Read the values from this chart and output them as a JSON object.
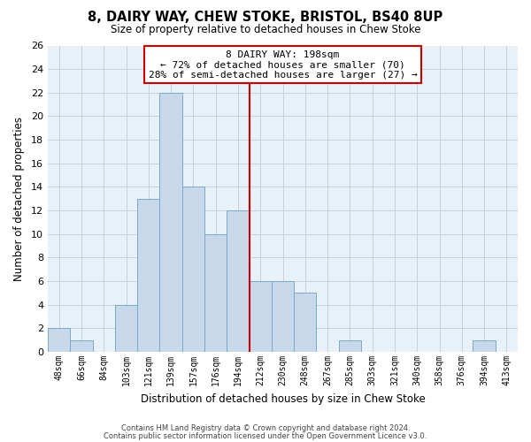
{
  "title": "8, DAIRY WAY, CHEW STOKE, BRISTOL, BS40 8UP",
  "subtitle": "Size of property relative to detached houses in Chew Stoke",
  "xlabel": "Distribution of detached houses by size in Chew Stoke",
  "ylabel": "Number of detached properties",
  "bin_labels": [
    "48sqm",
    "66sqm",
    "84sqm",
    "103sqm",
    "121sqm",
    "139sqm",
    "157sqm",
    "176sqm",
    "194sqm",
    "212sqm",
    "230sqm",
    "248sqm",
    "267sqm",
    "285sqm",
    "303sqm",
    "321sqm",
    "340sqm",
    "358sqm",
    "376sqm",
    "394sqm",
    "413sqm"
  ],
  "bar_heights": [
    2,
    1,
    0,
    4,
    13,
    22,
    14,
    10,
    12,
    6,
    6,
    5,
    0,
    1,
    0,
    0,
    0,
    0,
    0,
    1,
    0
  ],
  "bar_color": "#c8d8eb",
  "bar_edgecolor": "#7aaac8",
  "vline_x_idx": 8.5,
  "vline_color": "#cc0000",
  "ylim": [
    0,
    26
  ],
  "yticks": [
    0,
    2,
    4,
    6,
    8,
    10,
    12,
    14,
    16,
    18,
    20,
    22,
    24,
    26
  ],
  "annotation_title": "8 DAIRY WAY: 198sqm",
  "annotation_line1": "← 72% of detached houses are smaller (70)",
  "annotation_line2": "28% of semi-detached houses are larger (27) →",
  "annotation_box_facecolor": "#ffffff",
  "annotation_box_edgecolor": "#cc0000",
  "footer1": "Contains HM Land Registry data © Crown copyright and database right 2024.",
  "footer2": "Contains public sector information licensed under the Open Government Licence v3.0.",
  "background_color": "#ffffff",
  "plot_bg_color": "#e8f0f8",
  "grid_color": "#c8d0d8"
}
